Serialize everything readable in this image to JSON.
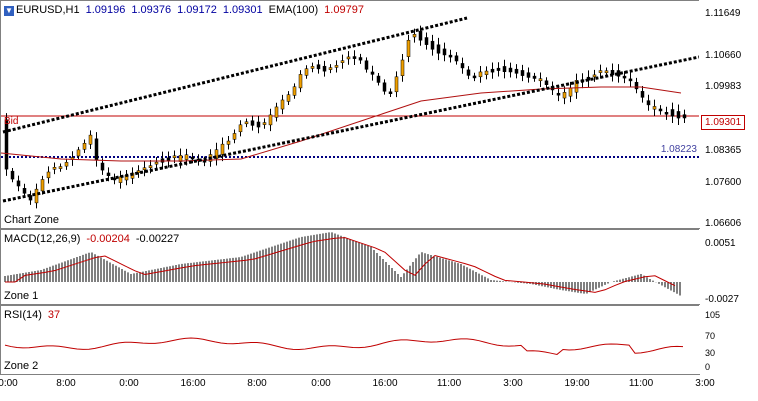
{
  "main_chart": {
    "symbol_icon": "down-arrow-icon",
    "symbol": "EURUSD,H1",
    "ohlc": [
      "1.09196",
      "1.09376",
      "1.09172",
      "1.09301"
    ],
    "ema_label": "EMA(100)",
    "ema_value": "1.09797",
    "bid_label": "Bid",
    "bid_value": "1.09301",
    "level_value": "1.08223",
    "zone_label": "Chart Zone",
    "price_ticks": [
      "1.11649",
      "1.10660",
      "1.09983",
      "1.08365",
      "1.07600",
      "1.06606"
    ],
    "colors": {
      "bull": "#f0a000",
      "bear": "#000000",
      "ema": "#b01010",
      "bid": "#c00000",
      "channel": "#000000",
      "level": "#000080"
    }
  },
  "macd": {
    "label": "MACD(12,26,9)",
    "value1": "-0.00204",
    "value2": "-0.00227",
    "zone_label": "Zone 1",
    "ticks": [
      "0.0051",
      "-0.0027"
    ]
  },
  "rsi": {
    "label": "RSI(14)",
    "value": "37",
    "zone_label": "Zone 2",
    "ticks": [
      "105",
      "70",
      "30",
      "0"
    ]
  },
  "time_axis": [
    "0:00",
    "8:00",
    "0:00",
    "16:00",
    "8:00",
    "0:00",
    "16:00",
    "11:00",
    "3:00",
    "19:00",
    "11:00",
    "3:00"
  ]
}
